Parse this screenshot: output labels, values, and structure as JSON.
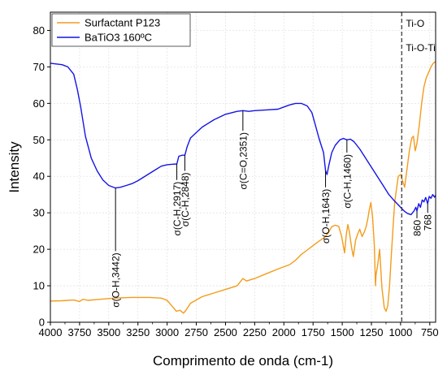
{
  "chart_data": {
    "type": "line",
    "xlabel": "Comprimento de onda (cm-1)",
    "ylabel": "Intensity",
    "xlim": [
      4000,
      700
    ],
    "ylim": [
      0,
      85
    ],
    "x_reversed": true,
    "x_ticks": [
      4000,
      3750,
      3500,
      3250,
      3000,
      2750,
      2500,
      2250,
      2000,
      1750,
      1500,
      1250,
      1000,
      750
    ],
    "y_ticks": [
      0,
      10,
      20,
      30,
      40,
      50,
      60,
      70,
      80
    ],
    "grid": true,
    "legend_position": "top-left",
    "colors": {
      "p123": "#f39c1b",
      "batio3": "#1414e6"
    },
    "series": [
      {
        "name": "Surfactant P123",
        "color": "#f39c1b",
        "points": [
          [
            4000,
            5.8
          ],
          [
            3900,
            5.9
          ],
          [
            3800,
            6.1
          ],
          [
            3750,
            5.7
          ],
          [
            3720,
            6.3
          ],
          [
            3680,
            6.0
          ],
          [
            3600,
            6.2
          ],
          [
            3500,
            6.5
          ],
          [
            3400,
            6.7
          ],
          [
            3300,
            6.8
          ],
          [
            3150,
            6.8
          ],
          [
            3050,
            6.6
          ],
          [
            3000,
            6.0
          ],
          [
            2960,
            4.5
          ],
          [
            2920,
            3.0
          ],
          [
            2890,
            3.3
          ],
          [
            2860,
            2.5
          ],
          [
            2840,
            3.2
          ],
          [
            2800,
            5.2
          ],
          [
            2700,
            7.0
          ],
          [
            2600,
            8.0
          ],
          [
            2500,
            9.0
          ],
          [
            2400,
            10.0
          ],
          [
            2351,
            12.0
          ],
          [
            2320,
            11.3
          ],
          [
            2250,
            12.0
          ],
          [
            2150,
            13.3
          ],
          [
            2050,
            14.6
          ],
          [
            1950,
            15.8
          ],
          [
            1900,
            17.0
          ],
          [
            1850,
            18.6
          ],
          [
            1800,
            19.8
          ],
          [
            1750,
            21.0
          ],
          [
            1700,
            22.2
          ],
          [
            1650,
            23.3
          ],
          [
            1620,
            24.5
          ],
          [
            1590,
            26.2
          ],
          [
            1560,
            26.6
          ],
          [
            1530,
            26.3
          ],
          [
            1505,
            23.5
          ],
          [
            1480,
            19.0
          ],
          [
            1465,
            24.0
          ],
          [
            1452,
            26.8
          ],
          [
            1440,
            25.0
          ],
          [
            1420,
            20.5
          ],
          [
            1405,
            18.0
          ],
          [
            1385,
            22.5
          ],
          [
            1370,
            24.0
          ],
          [
            1350,
            25.5
          ],
          [
            1330,
            23.5
          ],
          [
            1310,
            24.8
          ],
          [
            1295,
            26.2
          ],
          [
            1280,
            28.5
          ],
          [
            1270,
            30.5
          ],
          [
            1255,
            32.8
          ],
          [
            1240,
            29.0
          ],
          [
            1225,
            21.0
          ],
          [
            1215,
            10.0
          ],
          [
            1210,
            13.0
          ],
          [
            1195,
            16.0
          ],
          [
            1180,
            20.0
          ],
          [
            1160,
            9.5
          ],
          [
            1140,
            4.0
          ],
          [
            1125,
            3.0
          ],
          [
            1110,
            4.5
          ],
          [
            1095,
            10.0
          ],
          [
            1080,
            18.0
          ],
          [
            1065,
            26.0
          ],
          [
            1050,
            33.0
          ],
          [
            1020,
            40.0
          ],
          [
            1000,
            40.5
          ],
          [
            985,
            39.0
          ],
          [
            965,
            37.0
          ],
          [
            945,
            42.0
          ],
          [
            925,
            47.0
          ],
          [
            905,
            50.5
          ],
          [
            890,
            51.0
          ],
          [
            875,
            47.0
          ],
          [
            860,
            49.0
          ],
          [
            840,
            54.0
          ],
          [
            820,
            60.0
          ],
          [
            800,
            64.5
          ],
          [
            780,
            67.0
          ],
          [
            760,
            68.5
          ],
          [
            740,
            70.0
          ],
          [
            720,
            71.0
          ],
          [
            700,
            71.5
          ]
        ]
      },
      {
        "name": "BaTiO3 160ºC",
        "color": "#1414e6",
        "points": [
          [
            4000,
            71.0
          ],
          [
            3900,
            70.6
          ],
          [
            3850,
            70.0
          ],
          [
            3800,
            68.0
          ],
          [
            3770,
            64.0
          ],
          [
            3740,
            59.0
          ],
          [
            3700,
            51.0
          ],
          [
            3650,
            45.0
          ],
          [
            3600,
            41.5
          ],
          [
            3550,
            39.0
          ],
          [
            3500,
            37.5
          ],
          [
            3442,
            36.8
          ],
          [
            3400,
            37.0
          ],
          [
            3350,
            37.5
          ],
          [
            3300,
            38.0
          ],
          [
            3250,
            38.8
          ],
          [
            3200,
            39.8
          ],
          [
            3150,
            40.8
          ],
          [
            3100,
            41.8
          ],
          [
            3050,
            42.8
          ],
          [
            3000,
            43.2
          ],
          [
            2960,
            43.3
          ],
          [
            2917,
            43.4
          ],
          [
            2900,
            45.5
          ],
          [
            2870,
            45.8
          ],
          [
            2848,
            45.8
          ],
          [
            2830,
            48.0
          ],
          [
            2800,
            50.5
          ],
          [
            2700,
            53.5
          ],
          [
            2600,
            55.5
          ],
          [
            2500,
            57.0
          ],
          [
            2400,
            57.8
          ],
          [
            2351,
            58.0
          ],
          [
            2300,
            57.8
          ],
          [
            2250,
            58.0
          ],
          [
            2150,
            58.2
          ],
          [
            2050,
            58.4
          ],
          [
            2000,
            59.0
          ],
          [
            1950,
            59.6
          ],
          [
            1900,
            60.0
          ],
          [
            1850,
            60.0
          ],
          [
            1800,
            59.3
          ],
          [
            1760,
            57.5
          ],
          [
            1730,
            54.0
          ],
          [
            1700,
            50.5
          ],
          [
            1680,
            48.5
          ],
          [
            1660,
            46.5
          ],
          [
            1643,
            41.5
          ],
          [
            1630,
            40.5
          ],
          [
            1615,
            43.0
          ],
          [
            1590,
            46.5
          ],
          [
            1560,
            48.5
          ],
          [
            1520,
            50.0
          ],
          [
            1490,
            50.4
          ],
          [
            1460,
            50.0
          ],
          [
            1430,
            50.2
          ],
          [
            1400,
            49.5
          ],
          [
            1350,
            47.5
          ],
          [
            1300,
            45.0
          ],
          [
            1250,
            42.5
          ],
          [
            1200,
            40.0
          ],
          [
            1150,
            37.5
          ],
          [
            1100,
            35.0
          ],
          [
            1060,
            33.5
          ],
          [
            1030,
            32.5
          ],
          [
            1000,
            31.5
          ],
          [
            970,
            30.5
          ],
          [
            940,
            29.8
          ],
          [
            910,
            29.5
          ],
          [
            885,
            30.5
          ],
          [
            870,
            31.5
          ],
          [
            860,
            30.5
          ],
          [
            845,
            32.5
          ],
          [
            830,
            31.5
          ],
          [
            815,
            33.5
          ],
          [
            800,
            33.0
          ],
          [
            785,
            34.2
          ],
          [
            768,
            32.5
          ],
          [
            755,
            34.5
          ],
          [
            740,
            34.0
          ],
          [
            725,
            35.0
          ],
          [
            710,
            34.3
          ],
          [
            700,
            34.8
          ]
        ]
      }
    ],
    "annotations": [
      {
        "label": "σ(O-H,3442)",
        "x": 3442,
        "y": 36.8,
        "end": 19.5
      },
      {
        "label": "σ(C-H,2917)",
        "x": 2917,
        "y": 43.4,
        "end": 39.0
      },
      {
        "label": "σ(C-H,2848)",
        "x": 2848,
        "y": 45.8,
        "end": 41.5
      },
      {
        "label": "σ(C=O,2351)",
        "x": 2351,
        "y": 58.0,
        "end": 52.5
      },
      {
        "label": "σ(O-H,1643)",
        "x": 1643,
        "y": 41.5,
        "end": 37.0
      },
      {
        "label": "σ(C-H,1460)",
        "x": 1460,
        "y": 50.0,
        "end": 46.5
      },
      {
        "label": "860",
        "x": 860,
        "y": 30.5,
        "end": 28.5
      },
      {
        "label": "768",
        "x": 768,
        "y": 32.5,
        "end": 30.0
      }
    ],
    "reference_line": {
      "x": 990,
      "labels": [
        "Ti-O",
        "Ti-O-Ti"
      ]
    }
  }
}
